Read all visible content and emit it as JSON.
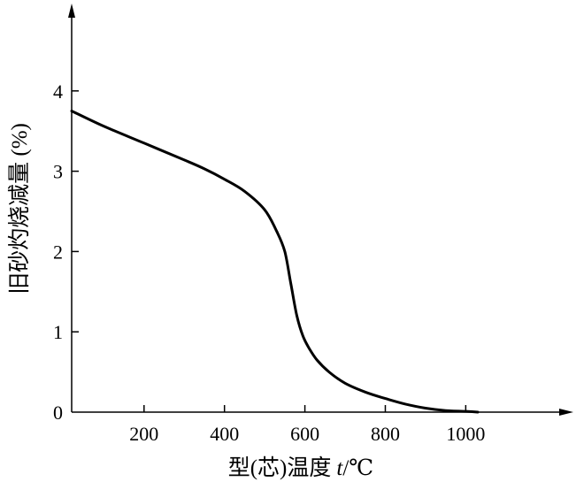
{
  "chart_data": {
    "type": "line",
    "title": "",
    "xlabel_parts": {
      "prefix": "型(芯)温度",
      "symbol": "t",
      "unit": "/℃"
    },
    "ylabel": "旧砂灼烧减量 (%)",
    "x_ticks": [
      "200",
      "400",
      "600",
      "800",
      "1000"
    ],
    "x_tick_values": [
      200,
      400,
      600,
      800,
      1000
    ],
    "y_ticks": [
      "0",
      "1",
      "2",
      "3",
      "4"
    ],
    "y_tick_values": [
      0,
      1,
      2,
      3,
      4
    ],
    "xlim": [
      20,
      1250
    ],
    "ylim": [
      0,
      5
    ],
    "grid": false,
    "legend": "none",
    "series": [
      {
        "x": [
          20,
          100,
          200,
          300,
          350,
          400,
          450,
          500,
          530,
          550,
          565,
          580,
          595,
          610,
          630,
          660,
          700,
          750,
          800,
          850,
          900,
          950,
          1000,
          1030
        ],
        "y": [
          3.75,
          3.56,
          3.35,
          3.14,
          3.03,
          2.9,
          2.75,
          2.52,
          2.25,
          2.0,
          1.6,
          1.2,
          0.95,
          0.8,
          0.65,
          0.5,
          0.36,
          0.25,
          0.17,
          0.1,
          0.05,
          0.02,
          0.01,
          0.0
        ]
      }
    ],
    "colors": {
      "line": "#000000",
      "axis": "#000000"
    }
  }
}
